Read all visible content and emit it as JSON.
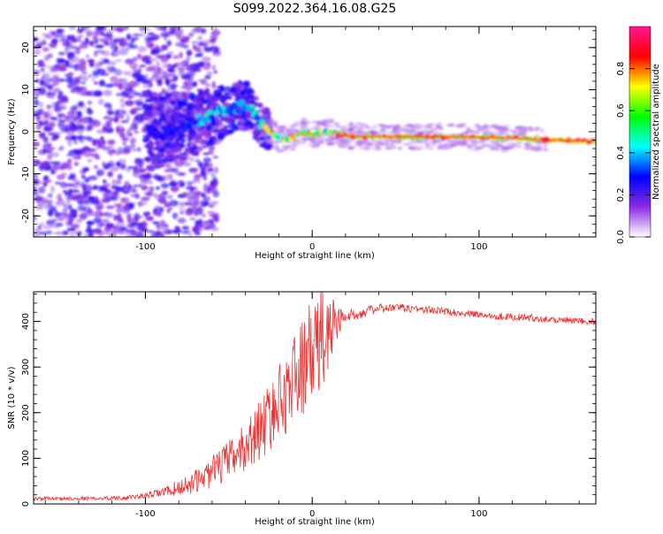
{
  "figure": {
    "title": "S099.2022.364.16.08.G25"
  },
  "chart_data": [
    {
      "type": "heatmap",
      "title": "",
      "xlabel": "Height of straight line (km)",
      "ylabel": "Frequency (Hz)",
      "xlim": [
        -167,
        170
      ],
      "ylim": [
        -25,
        25
      ],
      "xticks": [
        -100,
        0,
        100
      ],
      "xtick_labels": [
        "-100",
        "0",
        "100"
      ],
      "yticks": [
        -20,
        -10,
        0,
        10,
        20
      ],
      "ytick_labels": [
        "-20",
        "-10",
        "0",
        "10",
        "20"
      ],
      "colorbar": {
        "label": "Normalized spectral amplitude",
        "range": [
          0,
          1
        ],
        "ticks": [
          0.0,
          0.2,
          0.4,
          0.6,
          0.8
        ],
        "tick_labels": [
          "0.0",
          "0.2",
          "0.4",
          "0.6",
          "0.8"
        ],
        "colors": [
          "#ffffff",
          "#8a2be2",
          "#0000ff",
          "#00ffff",
          "#00ff00",
          "#ffff00",
          "#ff0000",
          "#ff1493"
        ]
      },
      "ridge": {
        "x": [
          -100,
          -90,
          -80,
          -70,
          -60,
          -50,
          -40,
          -35,
          -30,
          -25,
          -20,
          -15,
          -10,
          -5,
          0,
          5,
          10,
          15,
          20,
          40,
          60,
          80,
          100,
          120,
          140,
          170
        ],
        "freq": [
          -1,
          0,
          1,
          2.5,
          4,
          5,
          6.5,
          4,
          1.5,
          0,
          -1.5,
          -2,
          -1,
          0,
          -1,
          0,
          0,
          -0.5,
          -1,
          -1.2,
          -1.2,
          -1.2,
          -1.3,
          -1.5,
          -2,
          -2.2
        ]
      }
    },
    {
      "type": "line",
      "title": "",
      "xlabel": "Height of straight line (km)",
      "ylabel": "SNR (10 * v/v)",
      "xlim": [
        -167,
        170
      ],
      "ylim": [
        0,
        465
      ],
      "xticks": [
        -100,
        0,
        100
      ],
      "xtick_labels": [
        "-100",
        "0",
        "100"
      ],
      "yticks": [
        0,
        100,
        200,
        300,
        400
      ],
      "ytick_labels": [
        "0",
        "100",
        "200",
        "300",
        "400"
      ],
      "line_color": "#ee3333",
      "series": [
        {
          "x": [
            -167,
            -150,
            -130,
            -110,
            -100,
            -90,
            -80,
            -70,
            -60,
            -50,
            -40,
            -30,
            -20,
            -10,
            0,
            5,
            10,
            15,
            20,
            30,
            40,
            50,
            60,
            70,
            80,
            90,
            100,
            110,
            120,
            130,
            140,
            150,
            160,
            170
          ],
          "y": [
            12,
            12,
            12,
            14,
            18,
            25,
            35,
            50,
            70,
            95,
            125,
            170,
            220,
            280,
            330,
            355,
            380,
            400,
            410,
            420,
            428,
            430,
            428,
            425,
            422,
            418,
            415,
            412,
            410,
            408,
            405,
            403,
            400,
            400
          ],
          "noise": [
            4,
            4,
            4,
            5,
            6,
            10,
            18,
            25,
            35,
            45,
            55,
            70,
            85,
            100,
            120,
            130,
            110,
            40,
            15,
            12,
            10,
            9,
            9,
            9,
            8,
            8,
            8,
            8,
            8,
            8,
            8,
            8,
            8,
            8
          ]
        }
      ]
    }
  ]
}
